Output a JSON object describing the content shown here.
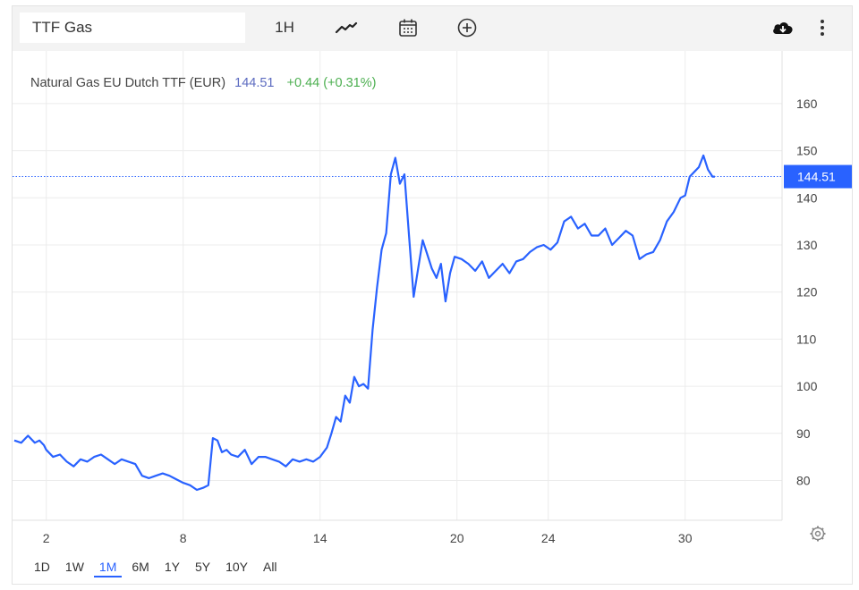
{
  "toolbar": {
    "symbol_value": "TTF Gas",
    "interval_label": "1H",
    "icons": [
      "line-chart-icon",
      "calendar-icon",
      "plus-circle-icon",
      "cloud-download-icon",
      "more-vertical-icon"
    ]
  },
  "legend": {
    "series_name": "Natural Gas EU Dutch TTF (EUR)",
    "last_price": "144.51",
    "change": "+0.44 (+0.31%)"
  },
  "price_tag": "144.51",
  "range_buttons": [
    {
      "label": "1D",
      "active": false
    },
    {
      "label": "1W",
      "active": false
    },
    {
      "label": "1M",
      "active": true
    },
    {
      "label": "6M",
      "active": false
    },
    {
      "label": "1Y",
      "active": false
    },
    {
      "label": "5Y",
      "active": false
    },
    {
      "label": "10Y",
      "active": false
    },
    {
      "label": "All",
      "active": false
    }
  ],
  "colors": {
    "line": "#2962ff",
    "legend_price": "#5c6bc0",
    "change_positive": "#4caf50",
    "price_tag_bg": "#2962ff",
    "grid": "#ececec"
  },
  "chart_data": {
    "type": "line",
    "title": "Natural Gas EU Dutch TTF (EUR)",
    "xlabel": "",
    "ylabel": "",
    "x_ticks": [
      2,
      8,
      14,
      20,
      24,
      30
    ],
    "y_ticks": [
      80,
      90,
      100,
      110,
      120,
      130,
      140,
      150,
      160
    ],
    "xlim": [
      0.6,
      31.9
    ],
    "ylim": [
      70,
      165
    ],
    "grid": true,
    "last_value": 144.51,
    "series": [
      {
        "name": "Natural Gas EU Dutch TTF (EUR)",
        "x": [
          0.6,
          0.9,
          1.2,
          1.5,
          1.7,
          1.9,
          2.0,
          2.3,
          2.6,
          2.9,
          3.2,
          3.5,
          3.8,
          4.1,
          4.4,
          4.7,
          5.0,
          5.3,
          5.6,
          5.9,
          6.2,
          6.5,
          6.8,
          7.1,
          7.4,
          7.6,
          7.8,
          8.0,
          8.3,
          8.6,
          8.9,
          9.1,
          9.3,
          9.5,
          9.7,
          9.9,
          10.1,
          10.4,
          10.7,
          11.0,
          11.3,
          11.6,
          11.9,
          12.2,
          12.5,
          12.8,
          13.1,
          13.4,
          13.7,
          14.0,
          14.3,
          14.5,
          14.7,
          14.9,
          15.1,
          15.3,
          15.5,
          15.7,
          15.9,
          16.1,
          16.3,
          16.5,
          16.7,
          16.9,
          17.1,
          17.3,
          17.5,
          17.7,
          17.9,
          18.1,
          18.3,
          18.5,
          18.7,
          18.9,
          19.1,
          19.3,
          19.5,
          19.7,
          19.9,
          20.2,
          20.5,
          20.8,
          21.1,
          21.4,
          21.7,
          22.0,
          22.3,
          22.6,
          22.9,
          23.2,
          23.5,
          23.8,
          24.1,
          24.4,
          24.7,
          25.0,
          25.3,
          25.6,
          25.9,
          26.2,
          26.5,
          26.8,
          27.1,
          27.4,
          27.7,
          28.0,
          28.3,
          28.6,
          28.9,
          29.2,
          29.5,
          29.8,
          30.0,
          30.2,
          30.4,
          30.6,
          30.8,
          31.0,
          31.2,
          31.3
        ],
        "values": [
          88.5,
          88.0,
          89.5,
          88.0,
          88.5,
          87.5,
          86.5,
          85.0,
          85.5,
          84.0,
          83.0,
          84.5,
          84.0,
          85.0,
          85.5,
          84.5,
          83.5,
          84.5,
          84.0,
          83.5,
          81.0,
          80.5,
          81.0,
          81.5,
          81.0,
          80.5,
          80.0,
          79.5,
          79.0,
          78.0,
          78.5,
          79.0,
          89.0,
          88.5,
          86.0,
          86.5,
          85.5,
          85.0,
          86.5,
          83.5,
          85.0,
          85.0,
          84.5,
          84.0,
          83.0,
          84.5,
          84.0,
          84.5,
          84.0,
          85.0,
          87.0,
          90.0,
          93.5,
          92.5,
          98.0,
          96.5,
          102.0,
          100.0,
          100.5,
          99.5,
          112.0,
          121.0,
          129.0,
          132.5,
          145.0,
          148.5,
          143.0,
          145.0,
          132.0,
          119.0,
          125.0,
          131.0,
          128.0,
          125.0,
          123.0,
          126.0,
          118.0,
          124.0,
          127.5,
          127.0,
          126.0,
          124.5,
          126.5,
          123.0,
          124.5,
          126.0,
          124.0,
          126.5,
          127.0,
          128.5,
          129.5,
          130.0,
          129.0,
          130.5,
          135.0,
          136.0,
          133.5,
          134.5,
          132.0,
          132.0,
          133.5,
          130.0,
          131.5,
          133.0,
          132.0,
          127.0,
          128.0,
          128.5,
          131.0,
          135.0,
          137.0,
          140.0,
          140.5,
          144.5,
          145.5,
          146.5,
          149.0,
          146.0,
          144.5,
          144.5
        ]
      }
    ]
  }
}
